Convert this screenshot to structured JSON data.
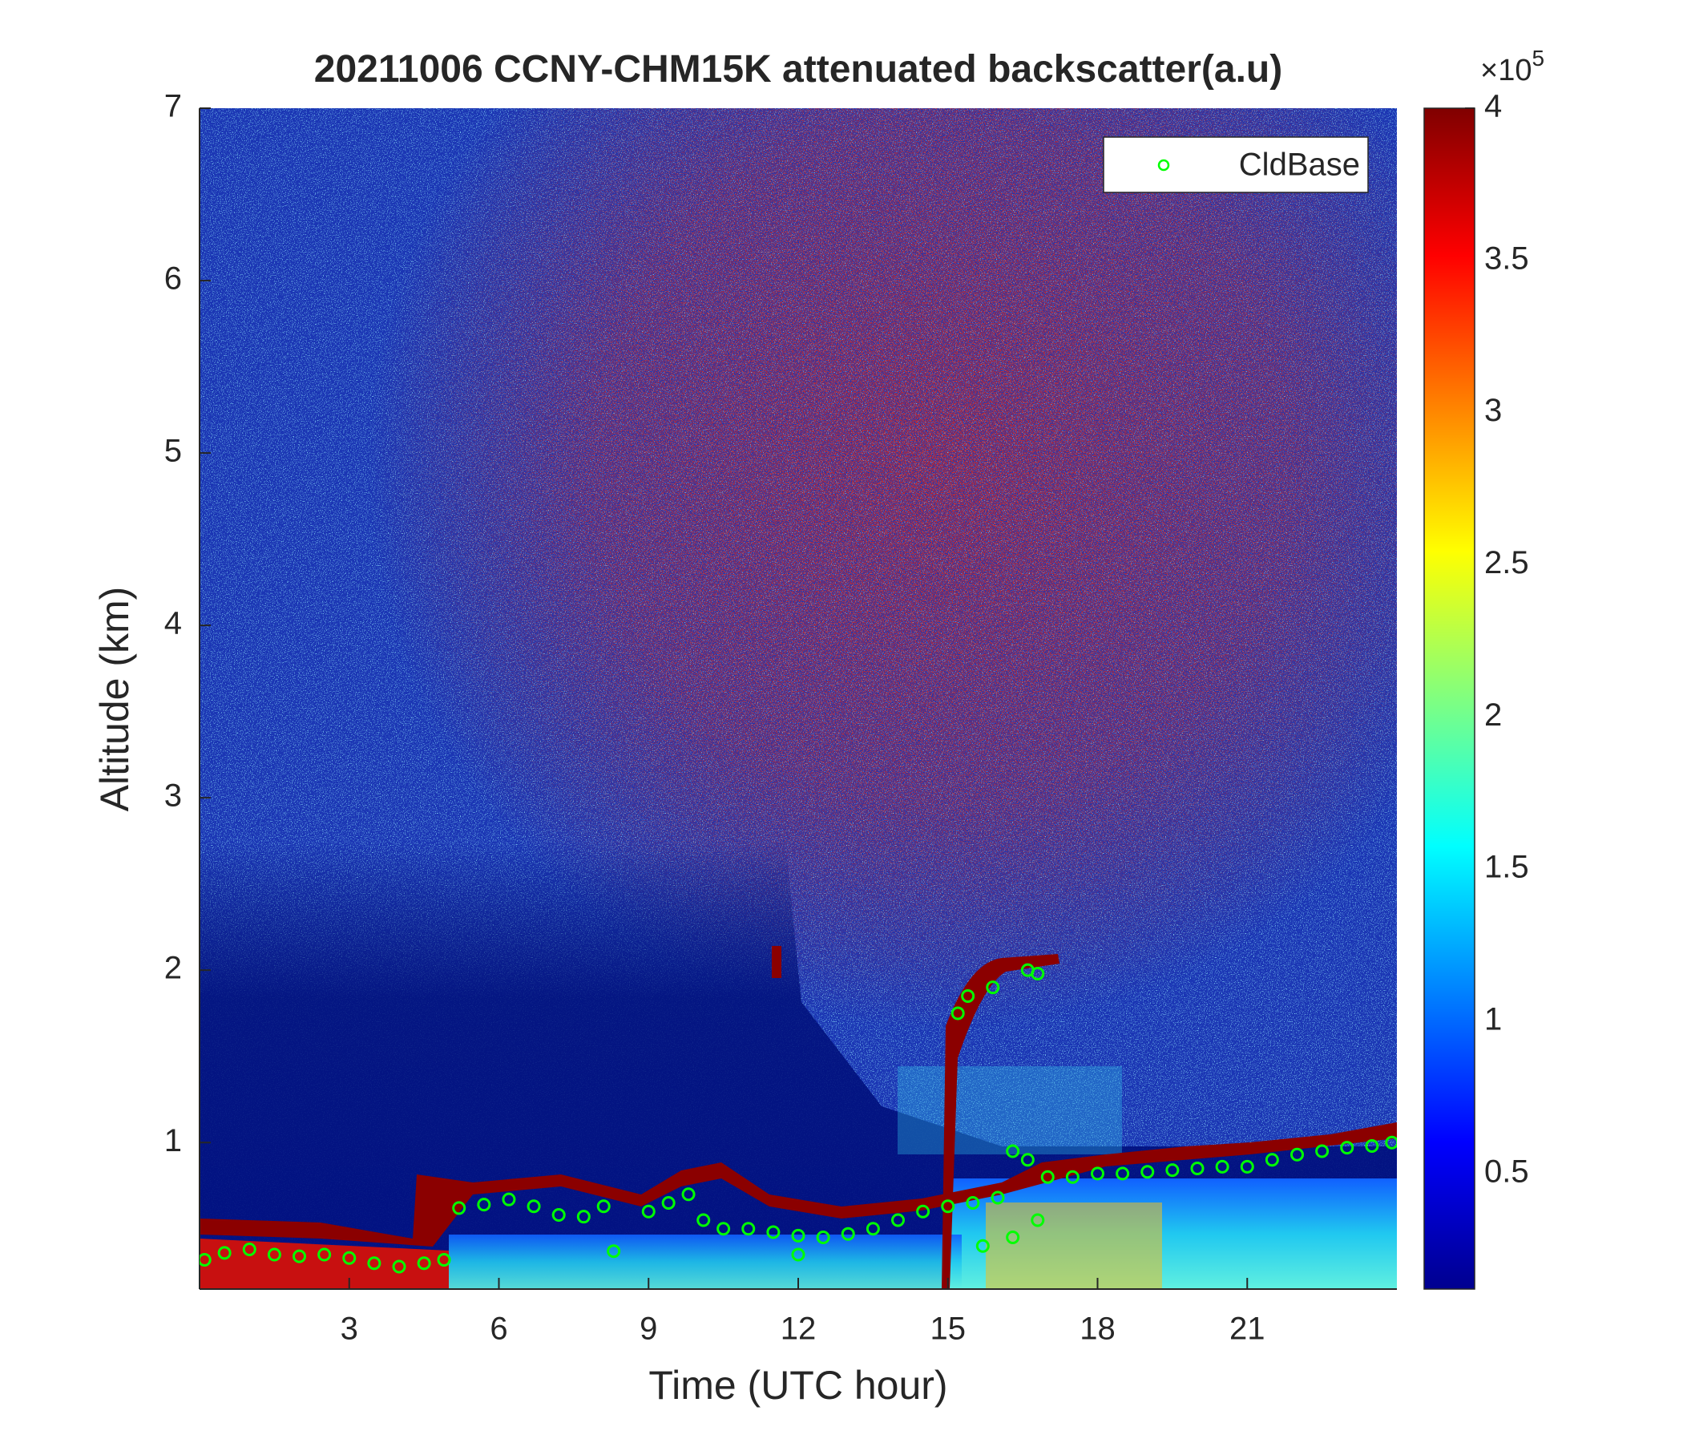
{
  "chart_data": {
    "type": "scatter",
    "title": "20211006 CCNY-CHM15K attenuated backscatter(a.u)",
    "x_label": "Time (UTC hour)",
    "y_label": "Altitude (km)",
    "xlim": [
      0,
      24
    ],
    "xticks": [
      3,
      6,
      9,
      12,
      15,
      18,
      21
    ],
    "ylim": [
      0.15,
      7
    ],
    "yticks": [
      1,
      2,
      3,
      4,
      5,
      6,
      7
    ],
    "legend_position": "upper right",
    "colorbar": {
      "colormap": "jet",
      "clim": [
        0.12,
        4
      ],
      "ticks": [
        0.5,
        1,
        1.5,
        2,
        2.5,
        3,
        3.5,
        4
      ],
      "multiplier": "×10",
      "exponent": "5"
    },
    "series": [
      {
        "name": "CldBase",
        "color": "#00ff00",
        "x": [
          0.1,
          0.5,
          1,
          1.5,
          2,
          2.5,
          3,
          3.5,
          4,
          4.5,
          4.9,
          5.2,
          5.7,
          6.2,
          6.7,
          7.2,
          7.7,
          8.1,
          8.3,
          9,
          9.4,
          9.8,
          10.1,
          10.5,
          11,
          11.5,
          12,
          12.5,
          13,
          13.5,
          14,
          14.5,
          15,
          15.5,
          16,
          15.2,
          15.4,
          15.9,
          16.6,
          16.8,
          15.7,
          16.3,
          16.8,
          16.3,
          16.6,
          17,
          17.5,
          18,
          18.5,
          19,
          19.5,
          20,
          20.5,
          21,
          21.5,
          22,
          22.5,
          23,
          23.5,
          23.9,
          12
        ],
        "values": [
          0.32,
          0.36,
          0.38,
          0.35,
          0.34,
          0.35,
          0.33,
          0.3,
          0.28,
          0.3,
          0.32,
          0.62,
          0.64,
          0.67,
          0.63,
          0.58,
          0.57,
          0.63,
          0.37,
          0.6,
          0.65,
          0.7,
          0.55,
          0.5,
          0.5,
          0.48,
          0.46,
          0.45,
          0.47,
          0.5,
          0.55,
          0.6,
          0.63,
          0.65,
          0.68,
          1.75,
          1.85,
          1.9,
          2,
          1.98,
          0.4,
          0.45,
          0.55,
          0.95,
          0.9,
          0.8,
          0.8,
          0.82,
          0.82,
          0.83,
          0.84,
          0.85,
          0.86,
          0.86,
          0.9,
          0.93,
          0.95,
          0.97,
          0.98,
          1,
          0.35
        ]
      }
    ]
  }
}
